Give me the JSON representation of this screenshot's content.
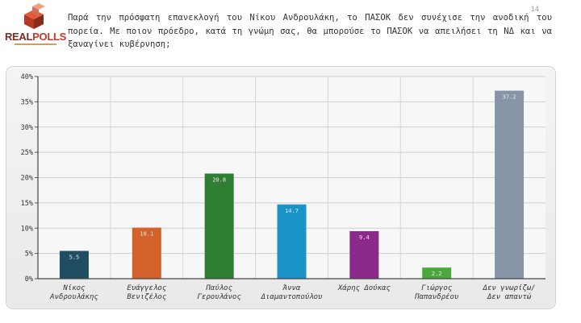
{
  "logo": {
    "real": "REAL",
    "polls": "POLLS"
  },
  "page_number": "14",
  "question": "Παρά την πρόσφατη επανεκλογή του Νίκου Ανδρουλάκη, το ΠΑΣΟΚ δεν συνέχισε την ανοδική του πορεία. Με ποιον πρόεδρο, κατά τη γνώμη σας, θα μπορούσε το ΠΑΣΟΚ να απειλήσει τη ΝΔ και να ξαναγίνει κυβέρνηση;",
  "chart_data": {
    "type": "bar",
    "categories": [
      [
        "Νίκος",
        "Ανδρουλάκης"
      ],
      [
        "Ευάγγελος",
        "Βενιζέλος"
      ],
      [
        "Παύλος",
        "Γερουλάνος"
      ],
      [
        "Άννα",
        "Διαμαντοπούλου"
      ],
      [
        "Χάρης Δούκας"
      ],
      [
        "Γιώργος",
        "Παπανδρέου"
      ],
      [
        "Δεν γνωρίζω/",
        "Δεν απαντώ"
      ]
    ],
    "values": [
      5.5,
      10.1,
      20.8,
      14.7,
      9.4,
      2.2,
      37.2
    ],
    "data_labels": [
      "5.5",
      "10.1",
      "20.8",
      "14.7",
      "9.4",
      "2.2",
      "37.2"
    ],
    "colors": [
      "#1f4e63",
      "#d2622a",
      "#2e7d32",
      "#1a94c8",
      "#8b2a8a",
      "#4aa83c",
      "#8795a8"
    ],
    "ylim": [
      0,
      40
    ],
    "yticks": [
      0,
      5,
      10,
      15,
      20,
      25,
      30,
      35,
      40
    ],
    "ytick_labels": [
      "0%",
      "5%",
      "10%",
      "15%",
      "20%",
      "25%",
      "30%",
      "35%",
      "40%"
    ],
    "grid": true,
    "title": "",
    "xlabel": "",
    "ylabel": ""
  }
}
